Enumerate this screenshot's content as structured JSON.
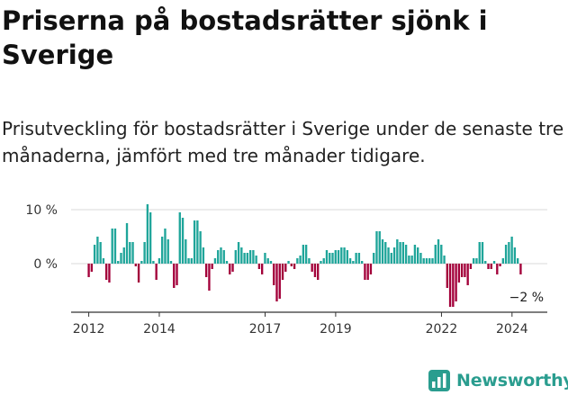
{
  "title": "Priserna på bostadsrätter sjönk i Sverige",
  "subtitle": "Prisutveckling för bostadsrätter i Sverige under de senaste tre månaderna, jämfört med tre månader tidigare.",
  "brand": {
    "name": "Newsworthy",
    "logo_icon": "bar-chart-logo-icon"
  },
  "colors": {
    "positive": "#1fa59a",
    "negative": "#a3003a",
    "grid": "#d9d9d9",
    "axis": "#333333"
  },
  "chart_data": {
    "type": "bar",
    "title": "Priserna på bostadsrätter sjönk i Sverige",
    "xlabel": "",
    "ylabel": "",
    "x_range": [
      2011.5,
      2025.0
    ],
    "ylim": [
      -9,
      11
    ],
    "y_ticks": [
      {
        "value": 0,
        "label": "0 %"
      },
      {
        "value": 10,
        "label": "10 %"
      }
    ],
    "x_ticks": [
      {
        "value": 2012,
        "label": "2012"
      },
      {
        "value": 2014,
        "label": "2014"
      },
      {
        "value": 2017,
        "label": "2017"
      },
      {
        "value": 2019,
        "label": "2019"
      },
      {
        "value": 2022,
        "label": "2022"
      },
      {
        "value": 2024,
        "label": "2024"
      }
    ],
    "annotation": {
      "text": "−2 %",
      "value": -2
    },
    "grid": true,
    "x_start": 2012.0,
    "x_step": 0.0833,
    "values": [
      -2.5,
      -1.5,
      3.5,
      5,
      4,
      1,
      -3,
      -3.5,
      6.5,
      6.5,
      0.5,
      2,
      3,
      7.5,
      4,
      4,
      -0.5,
      -3.5,
      0.5,
      4,
      11,
      9.5,
      0.5,
      -3,
      1,
      5,
      6.5,
      4.5,
      0.5,
      -4.5,
      -4,
      9.5,
      8.5,
      4.5,
      1,
      1,
      8,
      8,
      6,
      3,
      -2.5,
      -5,
      -1,
      1,
      2.5,
      3,
      2.5,
      0.5,
      -2,
      -1.5,
      2.5,
      4,
      3,
      2,
      2,
      2.5,
      2.5,
      1.5,
      -1,
      -2,
      2,
      1,
      0.5,
      -4,
      -7,
      -6.5,
      -3,
      -1.5,
      0.5,
      -0.5,
      -1,
      1,
      1.5,
      3.5,
      3.5,
      1,
      -1.5,
      -2.5,
      -3,
      0.5,
      1,
      2.5,
      2,
      2,
      2.5,
      2.5,
      3,
      3,
      2.5,
      1,
      0.5,
      2,
      2,
      0.5,
      -3,
      -3,
      -2,
      2,
      6,
      6,
      4.5,
      4,
      3,
      2,
      3,
      4.5,
      4,
      4,
      3.5,
      1.5,
      1.5,
      3.5,
      3,
      2,
      1,
      1,
      1,
      1,
      3.5,
      4.5,
      3.5,
      1.5,
      -4.5,
      -8,
      -8,
      -7,
      -3.5,
      -2.5,
      -2.5,
      -4,
      -1,
      1,
      1,
      4,
      4,
      0.5,
      -1,
      -1,
      0.5,
      -2,
      -0.5,
      1,
      3.5,
      4,
      5,
      3,
      1,
      -2
    ]
  }
}
